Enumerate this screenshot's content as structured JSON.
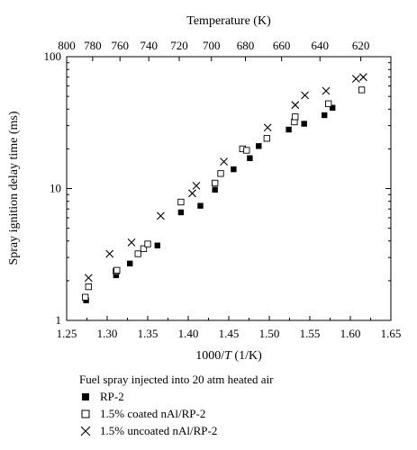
{
  "chart_data": {
    "type": "scatter",
    "xlabel_bottom": "1000/T (1/K)",
    "xlabel_bottom_parts": [
      "1000/",
      "T",
      " (1/K)"
    ],
    "xlabel_top": "Temperature (K)",
    "ylabel": "Spray ignition delay time (ms)",
    "xlim": [
      1.25,
      1.65
    ],
    "ylim": [
      1,
      100
    ],
    "yscale": "log",
    "x_ticks": [
      1.25,
      1.3,
      1.35,
      1.4,
      1.45,
      1.5,
      1.55,
      1.6,
      1.65
    ],
    "x_tick_labels": [
      "1.25",
      "1.30",
      "1.35",
      "1.40",
      "1.45",
      "1.50",
      "1.55",
      "1.60",
      "1.65"
    ],
    "y_ticks": [
      1,
      10,
      100
    ],
    "y_tick_labels": [
      "1",
      "10",
      "100"
    ],
    "top_ticks_K": [
      800,
      780,
      760,
      740,
      720,
      700,
      680,
      660,
      640,
      620
    ],
    "top_tick_labels": [
      "800",
      "780",
      "760",
      "740",
      "720",
      "700",
      "680",
      "660",
      "640",
      "620"
    ],
    "legend_title": "Fuel spray injected into 20 atm heated air",
    "series": [
      {
        "name": "RP-2",
        "marker": "filled-square",
        "x": [
          1.274,
          1.311,
          1.328,
          1.362,
          1.391,
          1.415,
          1.433,
          1.456,
          1.476,
          1.487,
          1.524,
          1.543,
          1.568,
          1.578
        ],
        "y": [
          1.42,
          2.2,
          2.7,
          3.7,
          6.6,
          7.4,
          9.8,
          14.0,
          17.0,
          21.0,
          28.0,
          31.0,
          36.0,
          41.0
        ]
      },
      {
        "name": "1.5% coated nAl/RP-2",
        "marker": "open-square",
        "x": [
          1.273,
          1.277,
          1.311,
          1.312,
          1.338,
          1.345,
          1.35,
          1.391,
          1.433,
          1.44,
          1.467,
          1.472,
          1.497,
          1.531,
          1.532,
          1.573,
          1.614
        ],
        "y": [
          1.5,
          1.8,
          2.35,
          2.4,
          3.2,
          3.5,
          3.8,
          7.9,
          11.0,
          13.0,
          20.0,
          19.5,
          24.0,
          32.0,
          35.0,
          44.0,
          56.0
        ]
      },
      {
        "name": "1.5% uncoated nAl/RP-2",
        "marker": "x",
        "x": [
          1.277,
          1.303,
          1.33,
          1.366,
          1.405,
          1.41,
          1.444,
          1.498,
          1.532,
          1.544,
          1.57,
          1.607,
          1.616
        ],
        "y": [
          2.1,
          3.2,
          3.9,
          6.2,
          9.2,
          10.5,
          16.0,
          29.0,
          43.0,
          51.0,
          55.0,
          68.0,
          70.0
        ]
      }
    ]
  }
}
